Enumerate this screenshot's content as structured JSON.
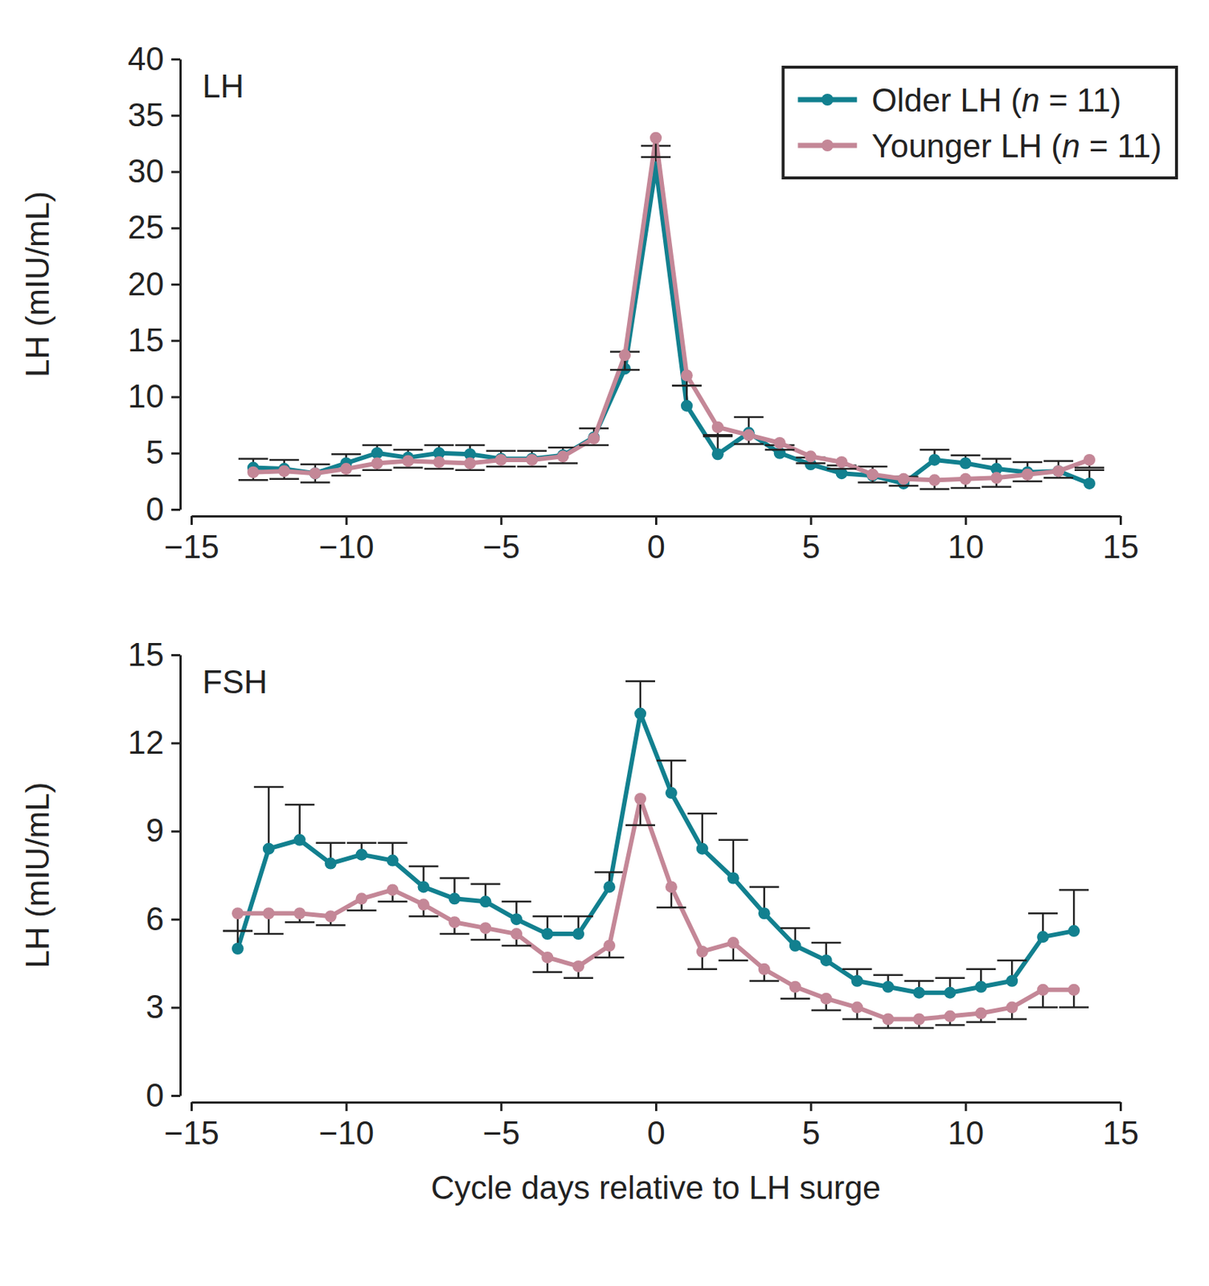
{
  "chart_data": [
    {
      "type": "line",
      "title": "LH",
      "y_label": "LH (mIU/mL)",
      "xlim": [
        -15,
        15
      ],
      "xticks": [
        {
          "value": -15,
          "label": "−15"
        },
        {
          "value": -10,
          "label": "−10"
        },
        {
          "value": -5,
          "label": "−5"
        },
        0,
        5,
        10,
        15
      ],
      "ylim": [
        0,
        40
      ],
      "yticks": [
        0,
        5,
        10,
        15,
        20,
        25,
        30,
        35,
        40
      ],
      "legend": "upper right",
      "marker": "circle",
      "x": [
        -13,
        -12,
        -11,
        -10,
        -9,
        -8,
        -7,
        -6,
        -5,
        -4,
        -3,
        -2,
        -1,
        0,
        1,
        2,
        3,
        4,
        5,
        6,
        7,
        8,
        9,
        10,
        11,
        12,
        13,
        14
      ],
      "series": [
        {
          "name": "Older LH (n = 11)",
          "color": "#12808f",
          "values": [
            3.7,
            3.6,
            3.2,
            4.1,
            5.0,
            4.6,
            5.0,
            4.9,
            4.5,
            4.5,
            4.8,
            6.4,
            12.5,
            30.4,
            9.2,
            4.9,
            6.8,
            5.0,
            4.0,
            3.2,
            3.0,
            2.3,
            4.4,
            4.1,
            3.6,
            3.3,
            3.4,
            2.3
          ],
          "errors": [
            0.8,
            0.8,
            0.8,
            0.8,
            0.7,
            0.7,
            0.7,
            0.8,
            0.7,
            0.7,
            0.7,
            0.8,
            1.5,
            1.9,
            1.8,
            1.7,
            1.4,
            0.7,
            0.6,
            0.7,
            0.8,
            0.6,
            0.9,
            0.7,
            0.9,
            0.9,
            0.9,
            1.2
          ]
        },
        {
          "name": "Younger LH (n = 11)",
          "color": "#c48797",
          "values": [
            3.3,
            3.4,
            3.2,
            3.6,
            4.1,
            4.3,
            4.2,
            4.1,
            4.4,
            4.4,
            4.7,
            6.3,
            13.7,
            33.0,
            11.9,
            7.3,
            6.6,
            5.9,
            4.7,
            4.2,
            3.1,
            2.7,
            2.6,
            2.7,
            2.8,
            3.1,
            3.4,
            4.4
          ],
          "errors": [
            0.7,
            0.7,
            0.8,
            0.6,
            0.6,
            0.6,
            0.6,
            0.6,
            0.6,
            0.6,
            0.6,
            0.6,
            1.3,
            1.7,
            0.9,
            0.8,
            0.8,
            0.6,
            0.6,
            0.6,
            0.7,
            0.6,
            0.8,
            0.8,
            0.8,
            0.6,
            0.6,
            0.7
          ]
        }
      ]
    },
    {
      "type": "line",
      "title": "FSH",
      "y_label": "LH (mIU/mL)",
      "x_label": "Cycle days relative to LH surge",
      "xlim": [
        -15,
        15
      ],
      "xticks": [
        {
          "value": -15,
          "label": "−15"
        },
        {
          "value": -10,
          "label": "−10"
        },
        {
          "value": -5,
          "label": "−5"
        },
        0,
        5,
        10,
        15
      ],
      "ylim": [
        0,
        15
      ],
      "yticks": [
        0,
        3,
        6,
        9,
        12,
        15
      ],
      "marker": "circle",
      "x": [
        -13.5,
        -12.5,
        -11.5,
        -10.5,
        -9.5,
        -8.5,
        -7.5,
        -6.5,
        -5.5,
        -4.5,
        -3.5,
        -2.5,
        -1.5,
        -0.5,
        0.5,
        1.5,
        2.5,
        3.5,
        4.5,
        5.5,
        6.5,
        7.5,
        8.5,
        9.5,
        10.5,
        11.5,
        12.5,
        13.5
      ],
      "series": [
        {
          "color": "#12808f",
          "values": [
            5.0,
            8.4,
            8.7,
            7.9,
            8.2,
            8.0,
            7.1,
            6.7,
            6.6,
            6.0,
            5.5,
            5.5,
            7.1,
            13.0,
            10.3,
            8.4,
            7.4,
            6.2,
            5.1,
            4.6,
            3.9,
            3.7,
            3.5,
            3.5,
            3.7,
            3.9,
            5.4,
            5.6
          ],
          "errors": [
            0.6,
            2.1,
            1.2,
            0.7,
            0.4,
            0.6,
            0.7,
            0.7,
            0.6,
            0.6,
            0.6,
            0.6,
            0.5,
            1.1,
            1.1,
            1.2,
            1.3,
            0.9,
            0.6,
            0.6,
            0.4,
            0.4,
            0.4,
            0.5,
            0.6,
            0.7,
            0.8,
            1.4
          ]
        },
        {
          "color": "#c48797",
          "values": [
            6.2,
            6.2,
            6.2,
            6.1,
            6.7,
            7.0,
            6.5,
            5.9,
            5.7,
            5.5,
            4.7,
            4.4,
            5.1,
            10.1,
            7.1,
            4.9,
            5.2,
            4.3,
            3.7,
            3.3,
            3.0,
            2.6,
            2.6,
            2.7,
            2.8,
            3.0,
            3.6,
            3.6
          ],
          "errors": [
            0.6,
            0.7,
            0.3,
            0.3,
            0.4,
            0.4,
            0.4,
            0.4,
            0.4,
            0.4,
            0.5,
            0.4,
            0.4,
            0.9,
            0.7,
            0.6,
            0.6,
            0.4,
            0.4,
            0.4,
            0.4,
            0.3,
            0.3,
            0.3,
            0.3,
            0.4,
            0.6,
            0.6
          ]
        }
      ]
    }
  ]
}
